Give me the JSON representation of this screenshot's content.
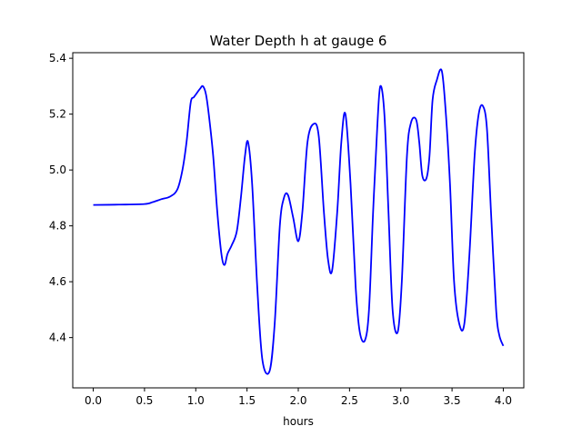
{
  "chart_data": {
    "type": "line",
    "title": "Water Depth h at gauge 6",
    "xlabel": "hours",
    "ylabel": "",
    "xlim": [
      -0.2,
      4.2
    ],
    "ylim": [
      4.22,
      5.42
    ],
    "xticks": [
      0.0,
      0.5,
      1.0,
      1.5,
      2.0,
      2.5,
      3.0,
      3.5,
      4.0
    ],
    "xtick_labels": [
      "0.0",
      "0.5",
      "1.0",
      "1.5",
      "2.0",
      "2.5",
      "3.0",
      "3.5",
      "4.0"
    ],
    "yticks": [
      4.4,
      4.6,
      4.8,
      5.0,
      5.2,
      5.4
    ],
    "ytick_labels": [
      "4.4",
      "4.6",
      "4.8",
      "5.0",
      "5.2",
      "5.4"
    ],
    "grid": false,
    "legend": "none",
    "series": [
      {
        "color": "#0000ff",
        "x": [
          0.0,
          0.25,
          0.5,
          0.58,
          0.66,
          0.75,
          0.82,
          0.87,
          0.91,
          0.95,
          0.98,
          1.0,
          1.04,
          1.07,
          1.1,
          1.13,
          1.17,
          1.21,
          1.25,
          1.28,
          1.31,
          1.35,
          1.4,
          1.44,
          1.48,
          1.51,
          1.55,
          1.6,
          1.65,
          1.72,
          1.77,
          1.82,
          1.86,
          1.9,
          1.95,
          2.0,
          2.04,
          2.09,
          2.15,
          2.2,
          2.25,
          2.29,
          2.33,
          2.38,
          2.42,
          2.46,
          2.51,
          2.56,
          2.6,
          2.65,
          2.69,
          2.73,
          2.77,
          2.8,
          2.84,
          2.88,
          2.92,
          2.97,
          3.01,
          3.06,
          3.1,
          3.15,
          3.18,
          3.21,
          3.25,
          3.28,
          3.31,
          3.35,
          3.4,
          3.44,
          3.48,
          3.52,
          3.57,
          3.62,
          3.67,
          3.72,
          3.76,
          3.8,
          3.84,
          3.88,
          3.93,
          3.96,
          4.0
        ],
        "y": [
          4.875,
          4.876,
          4.878,
          4.885,
          4.895,
          4.905,
          4.93,
          5.0,
          5.1,
          5.24,
          5.26,
          5.27,
          5.29,
          5.3,
          5.27,
          5.19,
          5.05,
          4.85,
          4.7,
          4.66,
          4.7,
          4.73,
          4.78,
          4.9,
          5.05,
          5.1,
          4.95,
          4.58,
          4.32,
          4.28,
          4.45,
          4.8,
          4.9,
          4.91,
          4.83,
          4.745,
          4.85,
          5.1,
          5.165,
          5.12,
          4.85,
          4.68,
          4.64,
          4.85,
          5.1,
          5.2,
          4.95,
          4.58,
          4.42,
          4.39,
          4.5,
          4.85,
          5.15,
          5.3,
          5.2,
          4.85,
          4.5,
          4.42,
          4.6,
          5.05,
          5.17,
          5.18,
          5.1,
          4.98,
          4.97,
          5.05,
          5.25,
          5.32,
          5.355,
          5.2,
          4.95,
          4.6,
          4.45,
          4.45,
          4.7,
          5.05,
          5.2,
          5.23,
          5.15,
          4.85,
          4.5,
          4.41,
          4.37
        ]
      }
    ]
  }
}
